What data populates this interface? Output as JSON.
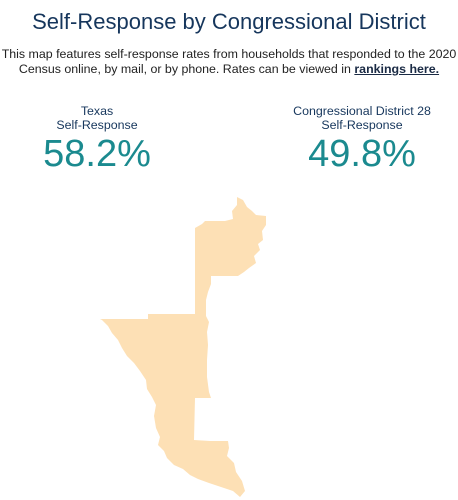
{
  "title": "Self-Response by Congressional District",
  "description": {
    "text": "This map features self-response rates from households that responded to the 2020 Census online, by mail, or by phone. Rates can be viewed in",
    "link": "rankings here."
  },
  "stats": [
    {
      "label_line1": "Texas",
      "label_line2": "Self-Response",
      "value": "58.2%"
    },
    {
      "label_line1": "Congressional District 28",
      "label_line2": "Self-Response",
      "value": "49.8%"
    }
  ],
  "colors": {
    "title": "#16365c",
    "value": "#1b8a8f",
    "district_fill": "#fde0b5"
  }
}
